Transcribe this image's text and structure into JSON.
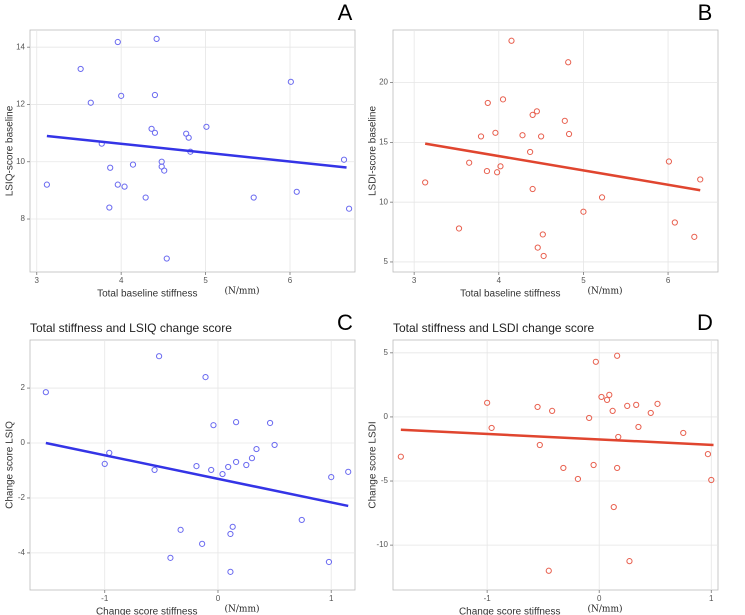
{
  "chart_data": [
    {
      "type": "scatter",
      "panel_label": "A",
      "xlabel": "Total baseline stiffness",
      "x_unit": "(N/mm)",
      "ylabel": "LSIQ-score baseline",
      "x": [
        3.12,
        3.52,
        3.64,
        3.77,
        3.87,
        3.86,
        3.96,
        4.0,
        3.96,
        4.04,
        4.14,
        4.29,
        4.36,
        4.4,
        4.42,
        4.4,
        4.48,
        4.48,
        4.51,
        4.54,
        4.77,
        4.8,
        4.82,
        5.01,
        5.57,
        6.01,
        6.08,
        6.64,
        6.7
      ],
      "values": [
        9.2,
        13.24,
        12.06,
        10.63,
        9.79,
        8.4,
        14.18,
        12.3,
        9.2,
        9.13,
        9.9,
        8.75,
        11.15,
        11.01,
        14.29,
        12.33,
        10.0,
        9.83,
        9.69,
        6.62,
        10.98,
        10.84,
        10.35,
        11.22,
        8.75,
        12.79,
        8.95,
        10.07,
        8.36
      ],
      "color": "#6a6af0",
      "trend": {
        "x": [
          3.12,
          6.67
        ],
        "values": [
          10.9,
          9.8
        ],
        "color": "#3434e6"
      },
      "xlim": [
        2.92,
        6.77
      ],
      "ylim": [
        6.15,
        14.6
      ],
      "xticks": [
        3,
        4,
        5,
        6
      ],
      "yticks": [
        8,
        10,
        12,
        14
      ],
      "grid": true
    },
    {
      "type": "scatter",
      "panel_label": "B",
      "xlabel": "Total baseline stiffness",
      "x_unit": "(N/mm)",
      "ylabel": "LSDI-score baseline",
      "x": [
        3.13,
        3.53,
        3.65,
        3.79,
        3.87,
        3.86,
        3.96,
        3.98,
        4.02,
        4.05,
        4.15,
        4.28,
        4.37,
        4.4,
        4.45,
        4.4,
        4.46,
        4.5,
        4.52,
        4.53,
        4.78,
        4.82,
        4.83,
        5.0,
        5.22,
        6.01,
        6.08,
        6.31,
        6.38
      ],
      "values": [
        11.65,
        7.8,
        13.3,
        15.5,
        18.3,
        12.6,
        15.8,
        12.5,
        13.0,
        18.6,
        23.5,
        15.6,
        14.2,
        17.3,
        17.6,
        11.1,
        6.2,
        15.5,
        7.3,
        5.5,
        16.8,
        21.7,
        15.7,
        9.2,
        10.4,
        13.4,
        8.3,
        7.1,
        11.9
      ],
      "color": "#e8604f",
      "trend": {
        "x": [
          3.13,
          6.38
        ],
        "values": [
          14.9,
          11.0
        ],
        "color": "#e0452f"
      },
      "xlim": [
        2.75,
        6.59
      ],
      "ylim": [
        4.16,
        24.4
      ],
      "xticks": [
        3,
        4,
        5,
        6
      ],
      "yticks": [
        5,
        10,
        15,
        20
      ],
      "grid": true
    },
    {
      "type": "scatter",
      "panel_label": "C",
      "title": "Total stiffness and LSIQ change score",
      "xlabel": "Change score stiffness",
      "x_unit": "(N/mm)",
      "ylabel": "Change score LSIQ",
      "x": [
        -1.52,
        -0.52,
        -0.11,
        -1.0,
        -0.96,
        -0.56,
        -0.33,
        -0.42,
        -0.19,
        -0.14,
        -0.06,
        -0.04,
        0.04,
        0.09,
        0.11,
        0.11,
        0.13,
        0.16,
        0.16,
        0.25,
        0.3,
        0.34,
        0.5,
        0.46,
        0.74,
        0.98,
        1.0,
        1.15
      ],
      "values": [
        1.85,
        3.16,
        2.4,
        -0.76,
        -0.36,
        -0.98,
        -3.16,
        -4.18,
        -0.84,
        -3.67,
        -0.98,
        0.65,
        -1.13,
        -0.87,
        -4.69,
        -3.31,
        -3.05,
        -0.69,
        0.76,
        -0.8,
        -0.55,
        -0.22,
        -0.07,
        0.73,
        -2.8,
        -4.33,
        -1.24,
        -1.05
      ],
      "color": "#6a6af0",
      "trend": {
        "x": [
          -1.52,
          1.15
        ],
        "values": [
          0,
          -2.29
        ],
        "color": "#3434e6"
      },
      "xlim": [
        -1.66,
        1.21
      ],
      "ylim": [
        -5.35,
        3.75
      ],
      "xticks": [
        -1,
        0,
        1
      ],
      "yticks": [
        -4,
        -2,
        0,
        2
      ],
      "grid": true
    },
    {
      "type": "scatter",
      "panel_label": "D",
      "title": "Total stiffness and LSDI change score",
      "xlabel": "Change score stiffness",
      "x_unit": "(N/mm)",
      "ylabel": "Change score LSDI",
      "x": [
        -1.77,
        -1.0,
        -0.96,
        -0.55,
        -0.53,
        -0.42,
        -0.32,
        -0.19,
        -0.45,
        -0.09,
        -0.05,
        -0.03,
        0.02,
        0.07,
        0.09,
        0.12,
        0.13,
        0.16,
        0.16,
        0.17,
        0.25,
        0.27,
        0.33,
        0.35,
        0.46,
        0.52,
        0.75,
        0.97,
        1.0
      ],
      "values": [
        -3.1,
        1.1,
        -0.86,
        0.78,
        -2.19,
        0.47,
        -3.98,
        -4.84,
        -12.0,
        -0.08,
        -3.75,
        4.3,
        1.56,
        1.33,
        1.72,
        0.47,
        -7.03,
        4.77,
        -3.98,
        -1.56,
        0.86,
        -11.25,
        0.94,
        -0.78,
        0.31,
        1.02,
        -1.25,
        -2.9,
        -4.92
      ],
      "color": "#e8604f",
      "trend": {
        "x": [
          -1.77,
          1.02
        ],
        "values": [
          -1.0,
          -2.19
        ],
        "color": "#e0452f"
      },
      "xlim": [
        -1.84,
        1.06
      ],
      "ylim": [
        -13.5,
        6.0
      ],
      "xticks": [
        -1,
        0,
        1
      ],
      "yticks": [
        -10,
        -5,
        0,
        5
      ],
      "grid": true
    }
  ]
}
